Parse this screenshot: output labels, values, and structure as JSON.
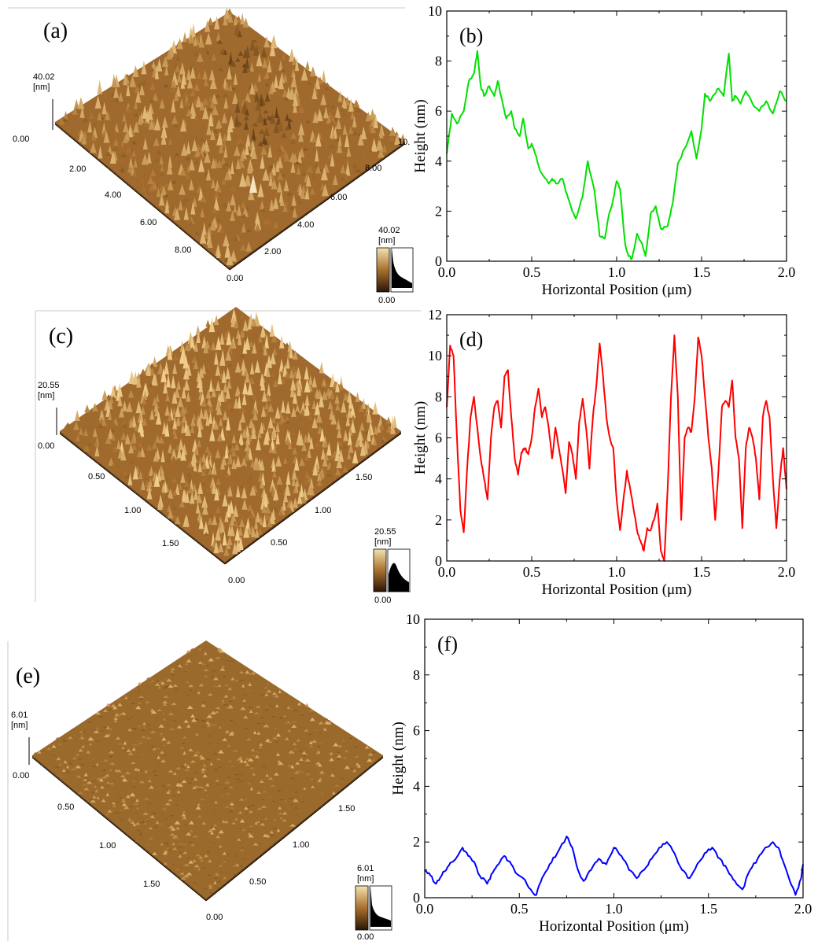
{
  "panels": [
    {
      "label": "(a)",
      "zmax": "40.02",
      "unit": "[nm]",
      "zmin": "0.00",
      "xticks": [
        "2.00",
        "4.00",
        "6.00",
        "8.00"
      ],
      "yticks": [
        "0.00",
        "2.00",
        "4.00",
        "6.00",
        "8.00",
        "10."
      ],
      "colorbar_max": "40.02",
      "colorbar_unit": "[nm]",
      "colorbar_min": "0.00",
      "theme": "rough"
    },
    {
      "label": "(c)",
      "zmax": "20.55",
      "unit": "[nm]",
      "zmin": "0.00",
      "xticks": [
        "0.50",
        "1.00",
        "1.50"
      ],
      "yticks": [
        "0.00",
        "0.50",
        "1.00",
        "1.50"
      ],
      "colorbar_max": "20.55",
      "colorbar_unit": "[nm]",
      "colorbar_min": "0.00",
      "theme": "spiky"
    },
    {
      "label": "(e)",
      "zmax": "6.01",
      "unit": "[nm]",
      "zmin": "0.00",
      "xticks": [
        "0.50",
        "1.00",
        "1.50"
      ],
      "yticks": [
        "0.00",
        "0.50",
        "1.00",
        "1.50"
      ],
      "colorbar_max": "6.01",
      "colorbar_unit": "[nm]",
      "colorbar_min": "0.00",
      "theme": "smooth"
    }
  ],
  "colors": {
    "surface_light": "#e9c27a",
    "surface_mid": "#a8702e",
    "surface_dark": "#4a2a0c",
    "green": "#00e000",
    "red": "#ff0000",
    "blue": "#0000ff"
  },
  "chart_data": [
    {
      "type": "line",
      "label": "(b)",
      "xlabel": "Horizontal Position (μm)",
      "ylabel": "Height (nm)",
      "xlim": [
        0,
        2
      ],
      "ylim": [
        0,
        10
      ],
      "xticks": [
        "0.0",
        "0.5",
        "1.0",
        "1.5",
        "2.0"
      ],
      "yticks": [
        "0",
        "2",
        "4",
        "6",
        "8",
        "10"
      ],
      "series": [
        {
          "color": "#00e000",
          "x": [
            0,
            0.03,
            0.06,
            0.1,
            0.13,
            0.16,
            0.18,
            0.2,
            0.22,
            0.25,
            0.28,
            0.3,
            0.32,
            0.35,
            0.38,
            0.4,
            0.43,
            0.45,
            0.48,
            0.5,
            0.52,
            0.55,
            0.6,
            0.62,
            0.65,
            0.68,
            0.7,
            0.73,
            0.76,
            0.8,
            0.83,
            0.87,
            0.9,
            0.93,
            0.95,
            0.98,
            1.0,
            1.02,
            1.05,
            1.07,
            1.09,
            1.12,
            1.15,
            1.17,
            1.2,
            1.23,
            1.26,
            1.3,
            1.33,
            1.36,
            1.4,
            1.44,
            1.47,
            1.5,
            1.52,
            1.55,
            1.58,
            1.6,
            1.63,
            1.66,
            1.68,
            1.7,
            1.73,
            1.76,
            1.8,
            1.84,
            1.88,
            1.92,
            1.96,
            2.0
          ],
          "y": [
            4.3,
            5.9,
            5.5,
            6.0,
            7.2,
            7.5,
            8.4,
            7.0,
            6.6,
            7.0,
            6.6,
            7.2,
            6.6,
            5.7,
            6.0,
            5.3,
            5.0,
            5.7,
            4.5,
            4.7,
            4.3,
            3.6,
            3.1,
            3.3,
            3.1,
            3.3,
            2.8,
            2.2,
            1.7,
            2.6,
            4.0,
            2.8,
            1.0,
            0.9,
            1.7,
            2.5,
            3.2,
            2.9,
            0.7,
            0.2,
            0.1,
            1.1,
            0.7,
            0.2,
            1.9,
            2.2,
            1.3,
            1.4,
            2.3,
            3.9,
            4.5,
            5.2,
            4.1,
            5.3,
            6.7,
            6.4,
            6.7,
            6.9,
            6.6,
            8.3,
            6.4,
            6.6,
            6.3,
            6.8,
            6.3,
            6.0,
            6.4,
            5.9,
            6.8,
            6.4
          ]
        }
      ]
    },
    {
      "type": "line",
      "label": "(d)",
      "xlabel": "Horizontal Position (μm)",
      "ylabel": "Height (nm)",
      "xlim": [
        0,
        2
      ],
      "ylim": [
        0,
        12
      ],
      "xticks": [
        "0.0",
        "0.5",
        "1.0",
        "1.5",
        "2.0"
      ],
      "yticks": [
        "0",
        "2",
        "4",
        "6",
        "8",
        "10",
        "12"
      ],
      "series": [
        {
          "color": "#ff0000",
          "x": [
            0,
            0.02,
            0.04,
            0.06,
            0.08,
            0.1,
            0.12,
            0.14,
            0.16,
            0.18,
            0.2,
            0.22,
            0.24,
            0.26,
            0.28,
            0.3,
            0.32,
            0.34,
            0.36,
            0.38,
            0.4,
            0.42,
            0.44,
            0.46,
            0.48,
            0.5,
            0.52,
            0.54,
            0.56,
            0.58,
            0.6,
            0.62,
            0.64,
            0.66,
            0.68,
            0.7,
            0.72,
            0.74,
            0.76,
            0.78,
            0.8,
            0.82,
            0.84,
            0.86,
            0.88,
            0.9,
            0.92,
            0.94,
            0.96,
            0.98,
            1.0,
            1.02,
            1.04,
            1.06,
            1.08,
            1.1,
            1.12,
            1.14,
            1.16,
            1.18,
            1.2,
            1.22,
            1.24,
            1.26,
            1.28,
            1.3,
            1.32,
            1.34,
            1.36,
            1.38,
            1.4,
            1.42,
            1.44,
            1.46,
            1.48,
            1.5,
            1.52,
            1.54,
            1.56,
            1.58,
            1.6,
            1.62,
            1.64,
            1.66,
            1.68,
            1.7,
            1.72,
            1.74,
            1.76,
            1.78,
            1.8,
            1.82,
            1.84,
            1.86,
            1.88,
            1.9,
            1.92,
            1.94,
            1.96,
            1.98,
            2.0
          ],
          "y": [
            7.5,
            10.5,
            10.0,
            6.0,
            2.5,
            1.4,
            4.5,
            7.0,
            8.0,
            6.5,
            5.0,
            4.0,
            3.0,
            6.0,
            7.5,
            7.8,
            6.5,
            9.0,
            9.3,
            7.0,
            5.0,
            4.2,
            5.3,
            5.5,
            5.2,
            6.0,
            7.5,
            8.4,
            7.0,
            7.5,
            6.5,
            5.0,
            6.5,
            5.5,
            4.5,
            3.3,
            5.8,
            5.2,
            4.0,
            6.8,
            7.9,
            6.5,
            4.5,
            7.0,
            8.5,
            10.6,
            9.0,
            7.0,
            6.0,
            5.5,
            3.0,
            1.5,
            3.0,
            4.4,
            3.5,
            2.5,
            1.5,
            1.0,
            0.5,
            1.6,
            1.5,
            2.0,
            2.8,
            0.5,
            0.0,
            3.5,
            8.0,
            11.0,
            8.0,
            2.0,
            6.0,
            6.5,
            6.3,
            8.0,
            10.9,
            10.0,
            8.0,
            6.0,
            4.5,
            2.0,
            4.5,
            7.5,
            7.8,
            7.5,
            8.8,
            6.0,
            5.0,
            1.6,
            5.5,
            6.5,
            6.0,
            5.0,
            3.0,
            7.0,
            7.8,
            7.0,
            4.0,
            1.6,
            4.0,
            5.5,
            3.5
          ]
        }
      ]
    },
    {
      "type": "line",
      "label": "(f)",
      "xlabel": "Horizontal Position (μm)",
      "ylabel": "Height (nm)",
      "xlim": [
        0,
        2
      ],
      "ylim": [
        0,
        10
      ],
      "xticks": [
        "0.0",
        "0.5",
        "1.0",
        "1.5",
        "2.0"
      ],
      "yticks": [
        "0",
        "2",
        "4",
        "6",
        "8",
        "10"
      ],
      "series": [
        {
          "color": "#0000ff",
          "x": [
            0,
            0.03,
            0.06,
            0.09,
            0.12,
            0.15,
            0.2,
            0.23,
            0.26,
            0.29,
            0.33,
            0.36,
            0.39,
            0.42,
            0.45,
            0.48,
            0.52,
            0.56,
            0.59,
            0.62,
            0.66,
            0.7,
            0.75,
            0.78,
            0.81,
            0.84,
            0.88,
            0.92,
            0.96,
            1.0,
            1.04,
            1.08,
            1.12,
            1.16,
            1.2,
            1.24,
            1.28,
            1.32,
            1.36,
            1.4,
            1.44,
            1.48,
            1.52,
            1.56,
            1.6,
            1.64,
            1.68,
            1.72,
            1.76,
            1.8,
            1.84,
            1.87,
            1.9,
            1.93,
            1.96,
            1.99,
            2.0
          ],
          "y": [
            1.0,
            0.8,
            0.5,
            0.8,
            1.1,
            1.3,
            1.8,
            1.5,
            1.3,
            0.8,
            0.5,
            0.9,
            1.2,
            1.5,
            1.3,
            0.9,
            0.7,
            0.3,
            0.1,
            0.7,
            1.2,
            1.6,
            2.2,
            1.8,
            1.0,
            0.6,
            1.0,
            1.4,
            1.2,
            1.8,
            1.5,
            1.0,
            0.7,
            1.0,
            1.4,
            1.8,
            2.0,
            1.6,
            1.0,
            0.7,
            1.2,
            1.6,
            1.8,
            1.4,
            1.0,
            0.6,
            0.3,
            1.0,
            1.4,
            1.8,
            2.0,
            1.8,
            1.2,
            0.6,
            0.1,
            0.7,
            1.2
          ]
        }
      ]
    }
  ]
}
